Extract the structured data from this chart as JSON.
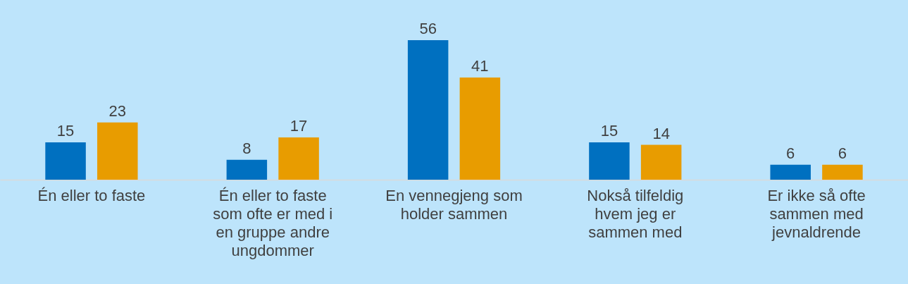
{
  "chart_data": {
    "type": "bar",
    "categories": [
      "Én eller to faste",
      "Én eller to faste som ofte er med i en gruppe andre ungdommer",
      "En vennegjeng som holder sammen",
      "Nokså tilfeldig hvem jeg er sammen med",
      "Er ikke så ofte sammen med jevnaldrende"
    ],
    "series": [
      {
        "color": "#0070c0",
        "values": [
          15,
          8,
          56,
          15,
          6
        ]
      },
      {
        "color": "#e89c00",
        "values": [
          23,
          17,
          41,
          14,
          6
        ]
      }
    ],
    "data_labels": true
  }
}
